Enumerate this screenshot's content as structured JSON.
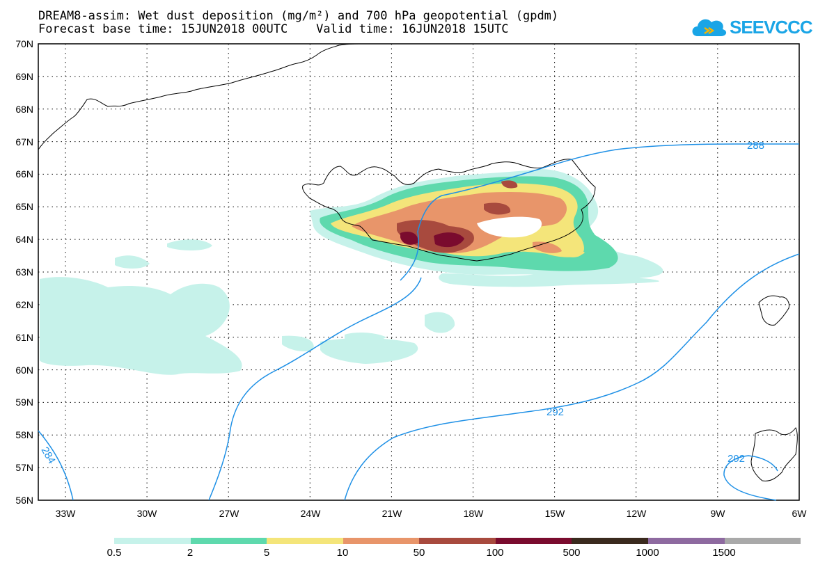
{
  "header": {
    "title_line1": "DREAM8-assim: Wet dust deposition (mg/m²) and 700 hPa geopotential (gpdm)",
    "title_line2": "Forecast base time: 15JUN2018 00UTC    Valid time: 16JUN2018 15UTC"
  },
  "logo": {
    "text": "SEEVCCC",
    "icon": "cloud-icon",
    "color": "#1aa5e6"
  },
  "axes": {
    "lat_labels": [
      "70N",
      "69N",
      "68N",
      "67N",
      "66N",
      "65N",
      "64N",
      "63N",
      "62N",
      "61N",
      "60N",
      "59N",
      "58N",
      "57N",
      "56N"
    ],
    "lon_labels": [
      "33W",
      "30W",
      "27W",
      "24W",
      "21W",
      "18W",
      "15W",
      "12W",
      "9W",
      "6W"
    ]
  },
  "contours": {
    "color": "#1e90e6",
    "labels": [
      "288",
      "292",
      "292",
      "284"
    ]
  },
  "legend": {
    "colors": [
      "#c6f2ea",
      "#5ed9ad",
      "#f4e57a",
      "#e8956a",
      "#a84a3e",
      "#7a0b2e",
      "#3a2a1e",
      "#8e6aa0",
      "#a9a9a9"
    ],
    "labels": [
      "0.5",
      "2",
      "5",
      "10",
      "50",
      "100",
      "500",
      "1000",
      "1500"
    ]
  }
}
